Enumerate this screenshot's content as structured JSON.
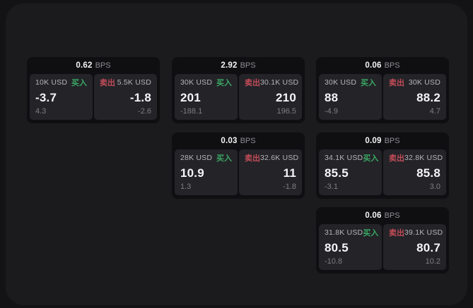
{
  "app": {
    "title": "bps-quote-grid",
    "colors": {
      "page_bg": "#131315",
      "panel_bg": "#1b1b1e",
      "card_bg": "#0f0f12",
      "tile_bg": "#232328",
      "buy_green": "#3aa763",
      "sell_red": "#c24c58",
      "value_white": "#f5f5f7",
      "muted_gray": "#7d7d83"
    }
  },
  "labels": {
    "bps_unit": "BPS",
    "buy": "买入",
    "sell": "卖出"
  },
  "cards": [
    {
      "bps": "0.62",
      "buy": {
        "size": "10K USD",
        "value": "-3.7",
        "sub": "4.3"
      },
      "sell": {
        "size": "5.5K USD",
        "value": "-1.8",
        "sub": "-2.6"
      }
    },
    {
      "bps": "2.92",
      "buy": {
        "size": "30K USD",
        "value": "201",
        "sub": "-188.1"
      },
      "sell": {
        "size": "30.1K USD",
        "value": "210",
        "sub": "196.5"
      }
    },
    {
      "bps": "0.06",
      "buy": {
        "size": "30K USD",
        "value": "88",
        "sub": "-4.9"
      },
      "sell": {
        "size": "30K USD",
        "value": "88.2",
        "sub": "4.7"
      }
    },
    {
      "bps": "0.03",
      "buy": {
        "size": "28K USD",
        "value": "10.9",
        "sub": "1.3"
      },
      "sell": {
        "size": "32.6K USD",
        "value": "11",
        "sub": "-1.8"
      }
    },
    {
      "bps": "0.09",
      "buy": {
        "size": "34.1K USD",
        "value": "85.5",
        "sub": "-3.1"
      },
      "sell": {
        "size": "32.8K USD",
        "value": "85.8",
        "sub": "3.0"
      }
    },
    {
      "bps": "0.06",
      "buy": {
        "size": "31.8K USD",
        "value": "80.5",
        "sub": "-10.8"
      },
      "sell": {
        "size": "39.1K USD",
        "value": "80.7",
        "sub": "10.2"
      }
    }
  ],
  "grid_positions": [
    {
      "col": 0,
      "row": 0
    },
    {
      "col": 1,
      "row": 0
    },
    {
      "col": 2,
      "row": 0
    },
    {
      "col": 1,
      "row": 1
    },
    {
      "col": 2,
      "row": 1
    },
    {
      "col": 2,
      "row": 2
    }
  ]
}
